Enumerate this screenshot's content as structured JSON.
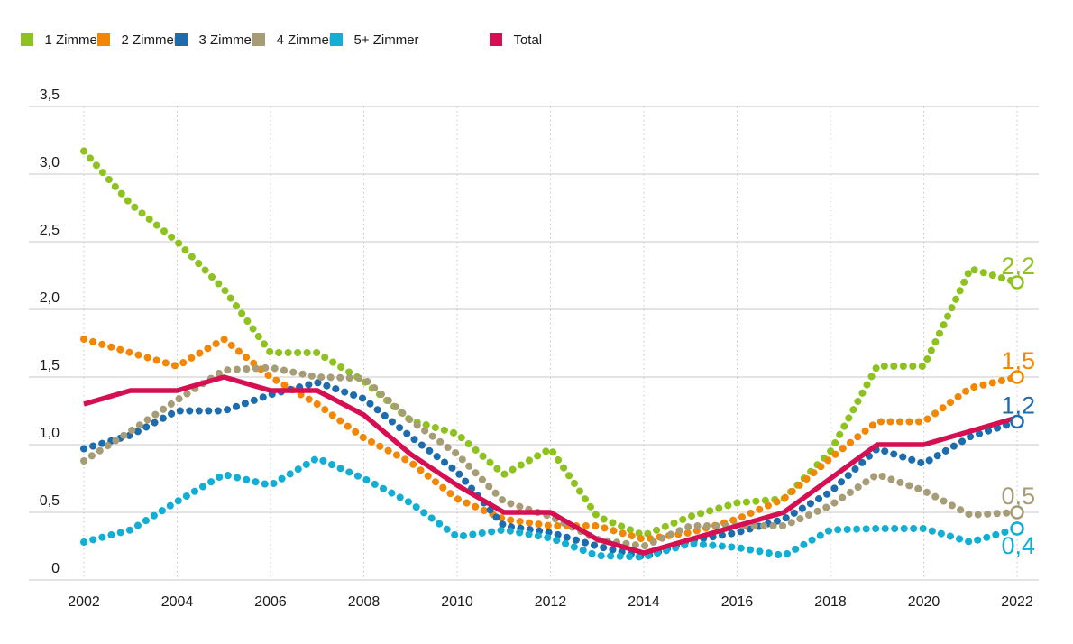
{
  "legend": {
    "items": [
      {
        "label": "1 Zimmer",
        "color": "#8ec21f"
      },
      {
        "label": "2 Zimmer",
        "color": "#f28705"
      },
      {
        "label": "3 Zimmer",
        "color": "#1c6cae"
      },
      {
        "label": "4 Zimmer",
        "color": "#a69c76"
      },
      {
        "label": "5+ Zimmer",
        "color": "#12aed4"
      },
      {
        "label": "Total",
        "color": "#d60f53"
      }
    ]
  },
  "chart_data": {
    "type": "line",
    "x": [
      2002,
      2003,
      2004,
      2005,
      2006,
      2007,
      2008,
      2009,
      2010,
      2011,
      2012,
      2013,
      2014,
      2015,
      2016,
      2017,
      2018,
      2019,
      2020,
      2021,
      2022
    ],
    "x_ticks": [
      {
        "year": 2002,
        "label": "2002"
      },
      {
        "year": 2004,
        "label": "2004"
      },
      {
        "year": 2006,
        "label": "2006"
      },
      {
        "year": 2008,
        "label": "2008"
      },
      {
        "year": 2010,
        "label": "2010"
      },
      {
        "year": 2012,
        "label": "2012"
      },
      {
        "year": 2014,
        "label": "2014"
      },
      {
        "year": 2016,
        "label": "2016"
      },
      {
        "year": 2018,
        "label": "2018"
      },
      {
        "year": 2020,
        "label": "2020"
      },
      {
        "year": 2022,
        "label": "2022"
      }
    ],
    "y_ticks": [
      {
        "value": 3.5,
        "label": "3,5"
      },
      {
        "value": 3.0,
        "label": "3,0"
      },
      {
        "value": 2.5,
        "label": "2,5"
      },
      {
        "value": 2.0,
        "label": "2,0"
      },
      {
        "value": 1.5,
        "label": "1,5"
      },
      {
        "value": 1.0,
        "label": "1,0"
      },
      {
        "value": 0.5,
        "label": "0,5"
      },
      {
        "value": 0,
        "label": "0"
      }
    ],
    "ylim": [
      0,
      3.5
    ],
    "grid": {
      "horizontal": "solid",
      "vertical": "dotted-every-2-years"
    },
    "legend_position": "top-left",
    "series": [
      {
        "id": "1-zimmer",
        "name": "1 Zimmer",
        "color": "#8ec21f",
        "style": "dotted",
        "end_label": "2,2",
        "end_label_side": "above",
        "values": [
          3.17,
          2.78,
          2.5,
          2.15,
          1.68,
          1.68,
          1.47,
          1.18,
          1.08,
          0.78,
          0.97,
          0.47,
          0.33,
          0.47,
          0.57,
          0.6,
          0.95,
          1.58,
          1.58,
          2.3,
          2.2
        ]
      },
      {
        "id": "2-zimmer",
        "name": "2 Zimmer",
        "color": "#f28705",
        "style": "dotted",
        "end_label": "1,5",
        "end_label_side": "above",
        "values": [
          1.78,
          1.68,
          1.58,
          1.78,
          1.5,
          1.3,
          1.05,
          0.87,
          0.6,
          0.45,
          0.4,
          0.4,
          0.3,
          0.35,
          0.45,
          0.6,
          0.9,
          1.17,
          1.17,
          1.42,
          1.5
        ]
      },
      {
        "id": "3-zimmer",
        "name": "3 Zimmer",
        "color": "#1c6cae",
        "style": "dotted",
        "end_label": "1,2",
        "end_label_side": "above",
        "values": [
          0.97,
          1.07,
          1.25,
          1.25,
          1.37,
          1.46,
          1.34,
          1.06,
          0.8,
          0.4,
          0.35,
          0.25,
          0.17,
          0.29,
          0.35,
          0.45,
          0.65,
          0.97,
          0.86,
          1.06,
          1.17
        ]
      },
      {
        "id": "4-zimmer",
        "name": "4 Zimmer",
        "color": "#a69c76",
        "style": "dotted",
        "end_label": "0,5",
        "end_label_side": "above",
        "values": [
          0.88,
          1.1,
          1.33,
          1.55,
          1.57,
          1.5,
          1.49,
          1.18,
          0.93,
          0.58,
          0.47,
          0.3,
          0.25,
          0.4,
          0.4,
          0.4,
          0.55,
          0.78,
          0.66,
          0.48,
          0.5
        ]
      },
      {
        "id": "5plus-zimmer",
        "name": "5+ Zimmer",
        "color": "#12aed4",
        "style": "dotted",
        "end_label": "0,4",
        "end_label_side": "below",
        "values": [
          0.28,
          0.37,
          0.58,
          0.78,
          0.7,
          0.9,
          0.75,
          0.57,
          0.32,
          0.37,
          0.31,
          0.18,
          0.17,
          0.27,
          0.24,
          0.18,
          0.37,
          0.38,
          0.38,
          0.28,
          0.38
        ]
      },
      {
        "id": "total",
        "name": "Total",
        "color": "#d60f53",
        "style": "solid",
        "end_label": null,
        "end_label_side": null,
        "values": [
          1.3,
          1.4,
          1.4,
          1.5,
          1.4,
          1.4,
          1.22,
          0.93,
          0.7,
          0.5,
          0.5,
          0.3,
          0.2,
          0.3,
          0.4,
          0.5,
          0.75,
          1.0,
          1.0,
          1.1,
          1.2
        ]
      }
    ]
  }
}
